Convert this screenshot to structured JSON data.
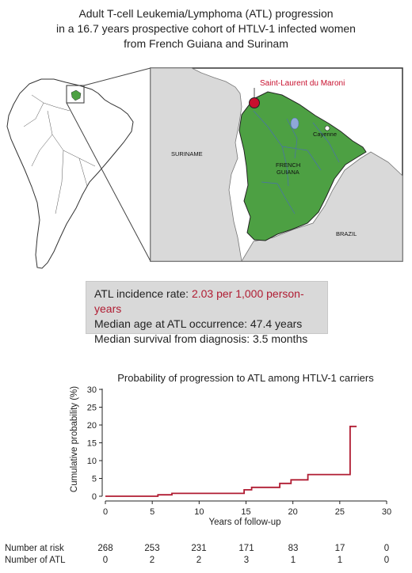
{
  "title_lines": [
    "Adult T-cell Leukemia/Lymphoma (ATL) progression",
    "in a 16.7 years prospective cohort of HTLV-1 infected women",
    "from French Guiana and Surinam"
  ],
  "map": {
    "city_label": "Saint-Laurent du Maroni",
    "labels": {
      "suriname": "SURINAME",
      "french_guiana_1": "FRENCH",
      "french_guiana_2": "GUIANA",
      "cayenne": "Cayenne",
      "brazil": "BRAZIL"
    },
    "colors": {
      "guiana_fill": "#4da043",
      "city_marker": "#c8102e",
      "surround": "#d9d9d9",
      "river": "#4a6fb0"
    }
  },
  "stats": {
    "incidence_label": "ATL incidence rate: ",
    "incidence_value": "2.03 per 1,000 person-years",
    "median_age": "Median age at ATL occurrence: 47.4 years",
    "median_survival": "Median survival from diagnosis: 3.5 months",
    "highlight_color": "#b01c32"
  },
  "chart_data": {
    "type": "line",
    "title": "Probability of progression to ATL among HTLV-1 carriers",
    "xlabel": "Years of follow-up",
    "ylabel": "Cumulative probability (%)",
    "xlim": [
      0,
      30
    ],
    "ylim": [
      0,
      30
    ],
    "xticks": [
      0,
      5,
      10,
      15,
      20,
      25,
      30
    ],
    "yticks": [
      0,
      5,
      10,
      15,
      20,
      25,
      30
    ],
    "line_color": "#b01c32",
    "series": [
      {
        "x": [
          0,
          5.6,
          5.6,
          7.1,
          7.1,
          14.8,
          14.8,
          15.6,
          15.6,
          18.6,
          18.6,
          19.8,
          19.8,
          21.6,
          21.6,
          26.1,
          26.1,
          26.8
        ],
        "y": [
          0,
          0,
          0.4,
          0.4,
          0.8,
          0.8,
          1.8,
          1.8,
          2.5,
          2.5,
          3.6,
          3.6,
          4.6,
          4.6,
          6.1,
          6.1,
          19.6,
          19.6
        ]
      }
    ],
    "risk_table": {
      "number_at_risk_label": "Number at risk",
      "number_at_risk": [
        "268",
        "253",
        "231",
        "171",
        "83",
        "17",
        "0"
      ],
      "number_of_atl_label": "Number of ATL",
      "number_of_atl": [
        "0",
        "2",
        "2",
        "3",
        "1",
        "1",
        "0"
      ]
    }
  }
}
